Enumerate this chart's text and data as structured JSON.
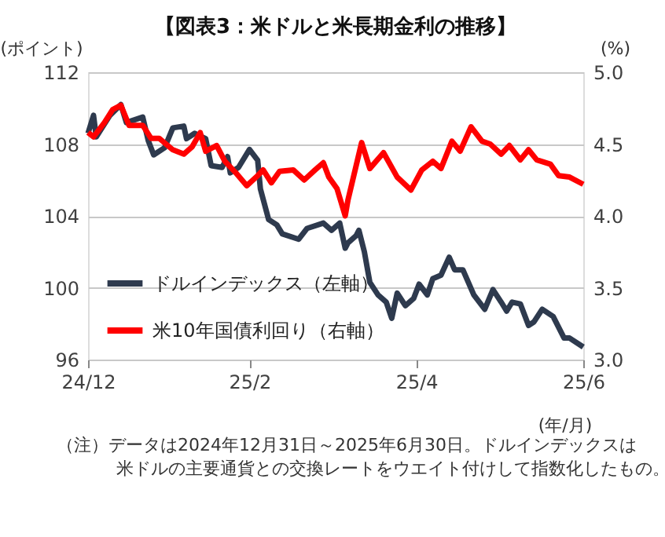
{
  "chart_data": {
    "type": "line",
    "title": "【図表3：米ドルと米長期金利の推移】",
    "ylabel": "(ポイント)",
    "y2label": "(%)",
    "xlabel": "(年/月)",
    "annotations": [
      "（注）データは2024年12月31日～2025年6月30日。ドルインデックスは",
      "米ドルの主要通貨との交換レートをウエイト付けして指数化したもの。"
    ],
    "xlim": [
      "2024-12-31",
      "2025-06-30"
    ],
    "xticks": [
      {
        "value": "2024-12-31",
        "label": "24/12"
      },
      {
        "value": "2025-02-28",
        "label": "25/2"
      },
      {
        "value": "2025-04-30",
        "label": "25/4"
      },
      {
        "value": "2025-06-30",
        "label": "25/6"
      }
    ],
    "ylim": [
      96,
      112
    ],
    "yticks": [
      96,
      100,
      104,
      108,
      112
    ],
    "y2lim": [
      3.0,
      5.0
    ],
    "y2ticks": [
      {
        "value": 3.0,
        "label": "3.0"
      },
      {
        "value": 3.5,
        "label": "3.5"
      },
      {
        "value": 4.0,
        "label": "4.0"
      },
      {
        "value": 4.5,
        "label": "4.5"
      },
      {
        "value": 5.0,
        "label": "5.0"
      }
    ],
    "grid": "y",
    "legend": "bottom left",
    "marker": "none",
    "line_style": "solid",
    "series": [
      {
        "name": "ドルインデックス（左軸）",
        "color": "#2e3a4e",
        "axis": "y",
        "x": [
          "2024-12-31",
          "2025-01-02",
          "2025-01-03",
          "2025-01-08",
          "2025-01-12",
          "2025-01-14",
          "2025-01-20",
          "2025-01-22",
          "2025-01-24",
          "2025-01-28",
          "2025-01-31",
          "2025-02-04",
          "2025-02-05",
          "2025-02-08",
          "2025-02-12",
          "2025-02-14",
          "2025-02-18",
          "2025-02-20",
          "2025-02-21",
          "2025-02-24",
          "2025-02-28",
          "2025-03-03",
          "2025-03-04",
          "2025-03-07",
          "2025-03-10",
          "2025-03-12",
          "2025-03-18",
          "2025-03-21",
          "2025-03-27",
          "2025-03-30",
          "2025-04-02",
          "2025-04-04",
          "2025-04-05",
          "2025-04-08",
          "2025-04-09",
          "2025-04-11",
          "2025-04-13",
          "2025-04-16",
          "2025-04-19",
          "2025-04-21",
          "2025-04-23",
          "2025-04-26",
          "2025-04-29",
          "2025-05-01",
          "2025-05-04",
          "2025-05-06",
          "2025-05-09",
          "2025-05-12",
          "2025-05-14",
          "2025-05-17",
          "2025-05-21",
          "2025-05-25",
          "2025-05-28",
          "2025-05-31",
          "2025-06-02",
          "2025-06-04",
          "2025-06-07",
          "2025-06-10",
          "2025-06-12",
          "2025-06-15",
          "2025-06-19",
          "2025-06-23",
          "2025-06-25",
          "2025-06-30"
        ],
        "values": [
          108.6,
          109.6,
          108.4,
          109.6,
          110.2,
          109.2,
          109.5,
          108.2,
          107.4,
          107.8,
          108.9,
          109.0,
          108.3,
          108.6,
          108.3,
          106.8,
          106.7,
          107.3,
          106.4,
          106.7,
          107.7,
          107.1,
          105.5,
          103.8,
          103.5,
          103.0,
          102.7,
          103.3,
          103.6,
          103.2,
          103.6,
          102.2,
          102.5,
          102.9,
          103.2,
          102.0,
          100.3,
          99.6,
          99.2,
          98.3,
          99.7,
          99.0,
          99.4,
          100.2,
          99.6,
          100.5,
          100.7,
          101.7,
          101.0,
          101.0,
          99.6,
          98.8,
          99.9,
          99.2,
          98.7,
          99.2,
          99.1,
          97.9,
          98.1,
          98.8,
          98.4,
          97.2,
          97.2,
          96.7
        ]
      },
      {
        "name": "米10年国債利回り（右軸）",
        "color": "#ff0000",
        "axis": "y2",
        "x": [
          "2024-12-31",
          "2025-01-02",
          "2025-01-06",
          "2025-01-09",
          "2025-01-12",
          "2025-01-15",
          "2025-01-20",
          "2025-01-23",
          "2025-01-26",
          "2025-01-31",
          "2025-02-04",
          "2025-02-07",
          "2025-02-10",
          "2025-02-12",
          "2025-02-16",
          "2025-02-19",
          "2025-02-23",
          "2025-02-27",
          "2025-03-03",
          "2025-03-05",
          "2025-03-08",
          "2025-03-11",
          "2025-03-16",
          "2025-03-20",
          "2025-03-24",
          "2025-03-27",
          "2025-03-29",
          "2025-04-01",
          "2025-04-04",
          "2025-04-05",
          "2025-04-10",
          "2025-04-13",
          "2025-04-18",
          "2025-04-23",
          "2025-04-28",
          "2025-05-02",
          "2025-05-06",
          "2025-05-09",
          "2025-05-13",
          "2025-05-16",
          "2025-05-20",
          "2025-05-24",
          "2025-05-27",
          "2025-05-31",
          "2025-06-03",
          "2025-06-07",
          "2025-06-10",
          "2025-06-13",
          "2025-06-18",
          "2025-06-21",
          "2025-06-25",
          "2025-06-30"
        ],
        "values": [
          4.58,
          4.55,
          4.65,
          4.74,
          4.77,
          4.63,
          4.63,
          4.54,
          4.54,
          4.46,
          4.43,
          4.48,
          4.58,
          4.45,
          4.49,
          4.38,
          4.3,
          4.21,
          4.28,
          4.32,
          4.23,
          4.31,
          4.32,
          4.25,
          4.32,
          4.37,
          4.27,
          4.19,
          4.0,
          4.11,
          4.51,
          4.33,
          4.44,
          4.27,
          4.18,
          4.32,
          4.38,
          4.33,
          4.52,
          4.45,
          4.62,
          4.52,
          4.5,
          4.43,
          4.49,
          4.39,
          4.46,
          4.39,
          4.36,
          4.28,
          4.27,
          4.22
        ]
      }
    ]
  }
}
